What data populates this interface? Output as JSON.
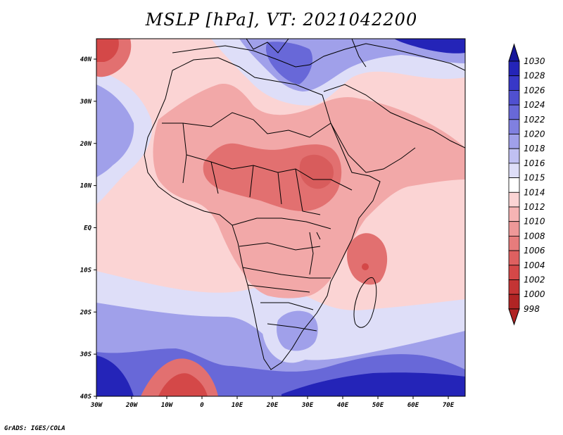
{
  "title": "MSLP [hPa], VT: 2021042200",
  "credit": "GrADS: IGES/COLA",
  "x_ticks": [
    "30W",
    "20W",
    "10W",
    "0",
    "10E",
    "20E",
    "30E",
    "40E",
    "50E",
    "60E",
    "70E"
  ],
  "y_ticks": [
    "40N",
    "30N",
    "20N",
    "10N",
    "EQ",
    "10S",
    "20S",
    "30S",
    "40S"
  ],
  "colorbar": {
    "labels": [
      "1030",
      "1028",
      "1026",
      "1024",
      "1022",
      "1020",
      "1018",
      "1016",
      "1015",
      "1014",
      "1012",
      "1010",
      "1008",
      "1006",
      "1004",
      "1002",
      "1000",
      "998"
    ],
    "colors": [
      "#16169a",
      "#2424b8",
      "#3838c8",
      "#5050d0",
      "#6868d8",
      "#8080e0",
      "#a0a0ea",
      "#c0c0f2",
      "#dedef8",
      "#ffffff",
      "#fbd4d4",
      "#f6b4b4",
      "#ee9898",
      "#e67c7c",
      "#de6060",
      "#d44848",
      "#c43434",
      "#b02424"
    ]
  },
  "map_colors": {
    "ocean": "#fbd4d4",
    "continent": "#f2a8a8",
    "deep_low": "#e27070",
    "core_low": "#d85c5c",
    "weak_high": "#dedef8",
    "mid_high": "#a0a0ea",
    "strong_high": "#6868d8",
    "max_high": "#2424b8",
    "med_low": "#d44848",
    "border": "#000000"
  }
}
